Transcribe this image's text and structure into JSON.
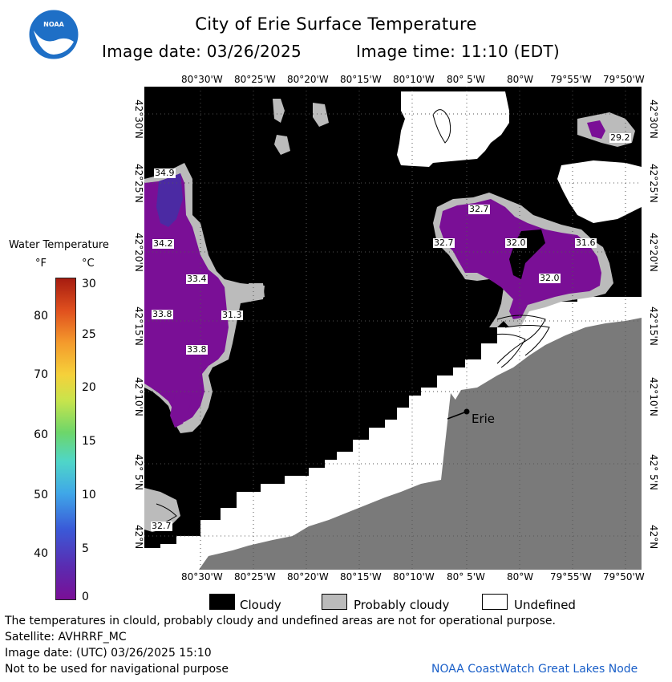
{
  "title": "City of Erie Surface Temperature",
  "image_date_label": "Image date: 03/26/2025",
  "image_time_label": "Image time: 11:10 (EDT)",
  "logo_text": "NOAA",
  "lon_ticks": [
    "80°30'W",
    "80°25'W",
    "80°20'W",
    "80°15'W",
    "80°10'W",
    "80° 5'W",
    "80°W",
    "79°55'W",
    "79°50'W"
  ],
  "lat_ticks": [
    "42°30'N",
    "42°25'N",
    "42°20'N",
    "42°15'N",
    "42°10'N",
    "42° 5'N",
    "42°N"
  ],
  "legend": {
    "title": "Water Temperature",
    "unit_f": "°F",
    "unit_c": "°C",
    "f_ticks": [
      "80",
      "70",
      "60",
      "50",
      "40"
    ],
    "c_ticks": [
      "30",
      "25",
      "20",
      "15",
      "10",
      "5",
      "0"
    ]
  },
  "map_labels": {
    "t1": "34.9",
    "t2": "34.2",
    "t3": "33.4",
    "t4": "33.8",
    "t5": "31.3",
    "t6": "33.8",
    "t7": "32.7",
    "t8": "32.7",
    "t9": "32.7",
    "t10": "32.0",
    "t11": "31.6",
    "t12": "32.0",
    "t13": "29.2"
  },
  "city_label": "Erie",
  "key": {
    "cloudy": "Cloudy",
    "probably_cloudy": "Probably cloudy",
    "undefined": "Undefined"
  },
  "footer": {
    "disclaimer": "The temperatures in clould, probably cloudy and undefined areas are not for operational purpose.",
    "satellite": "Satellite: AVHRRF_MC",
    "image_date_utc": "Image date: (UTC) 03/26/2025  15:10",
    "nav_note": "Not to be used for navigational purpose",
    "credit": "NOAA CoastWatch Great Lakes Node"
  },
  "colors": {
    "cloudy": "#000000",
    "probably_cloudy": "#bbbbbb",
    "undefined": "#ffffff",
    "land": "#7a7a7a",
    "water_purple": "#7a0f96",
    "credit": "#1a5fc8"
  }
}
